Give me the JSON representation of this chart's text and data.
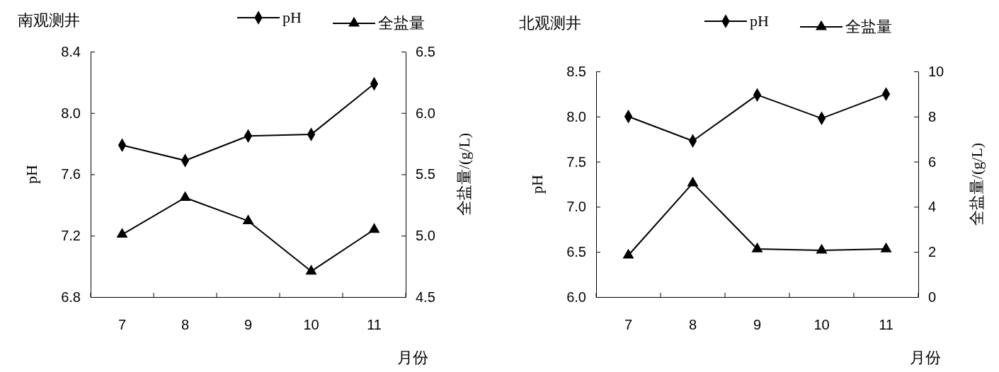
{
  "chart_data": [
    {
      "type": "line",
      "title": "南观测井",
      "xlabel": "月份",
      "ylabel": "pH",
      "y2label": "全盐量/(g/L)",
      "categories": [
        "7",
        "8",
        "9",
        "10",
        "11"
      ],
      "ylim": [
        6.8,
        8.4
      ],
      "yticks": [
        {
          "value": 6.8,
          "label": "6.8"
        },
        {
          "value": 7.2,
          "label": "7.2"
        },
        {
          "value": 7.6,
          "label": "7.6"
        },
        {
          "value": 8.0,
          "label": "8.0"
        },
        {
          "value": 8.4,
          "label": "8.4"
        }
      ],
      "y2lim": [
        4.5,
        6.5
      ],
      "y2ticks": [
        {
          "value": 4.5,
          "label": "4.5"
        },
        {
          "value": 5.0,
          "label": "5.0"
        },
        {
          "value": 5.5,
          "label": "5.5"
        },
        {
          "value": 6.0,
          "label": "6.0"
        },
        {
          "value": 6.5,
          "label": "6.5"
        }
      ],
      "legend": "top",
      "grid": false,
      "line_style": "solid",
      "series": [
        {
          "name": "pH",
          "color": "#000000",
          "marker": "diamond",
          "values": [
            7.79,
            7.69,
            7.85,
            7.86,
            8.19
          ]
        },
        {
          "name": "全盐量",
          "color": "#000000",
          "marker": "triangle",
          "axis": "y2",
          "values": [
            5.01,
            5.31,
            5.12,
            4.71,
            5.05
          ]
        }
      ]
    },
    {
      "type": "line",
      "title": "北观测井",
      "xlabel": "月份",
      "ylabel": "pH",
      "y2label": "全盐量/(g/L)",
      "categories": [
        "7",
        "8",
        "9",
        "10",
        "11"
      ],
      "ylim": [
        6.0,
        8.5
      ],
      "yticks": [
        {
          "value": 6.0,
          "label": "6.0"
        },
        {
          "value": 6.5,
          "label": "6.5"
        },
        {
          "value": 7.0,
          "label": "7.0"
        },
        {
          "value": 7.5,
          "label": "7.5"
        },
        {
          "value": 8.0,
          "label": "8.0"
        },
        {
          "value": 8.5,
          "label": "8.5"
        }
      ],
      "y2lim": [
        0,
        10
      ],
      "y2ticks": [
        0,
        2,
        4,
        6,
        8,
        10
      ],
      "legend": "top",
      "grid": false,
      "line_style": "solid",
      "series": [
        {
          "name": "pH",
          "color": "#000000",
          "marker": "diamond",
          "values": [
            8.0,
            7.73,
            8.24,
            7.98,
            8.25
          ]
        },
        {
          "name": "全盐量",
          "color": "#000000",
          "marker": "triangle",
          "axis": "y2",
          "values": [
            1.85,
            5.05,
            2.13,
            2.07,
            2.13
          ]
        }
      ]
    }
  ]
}
